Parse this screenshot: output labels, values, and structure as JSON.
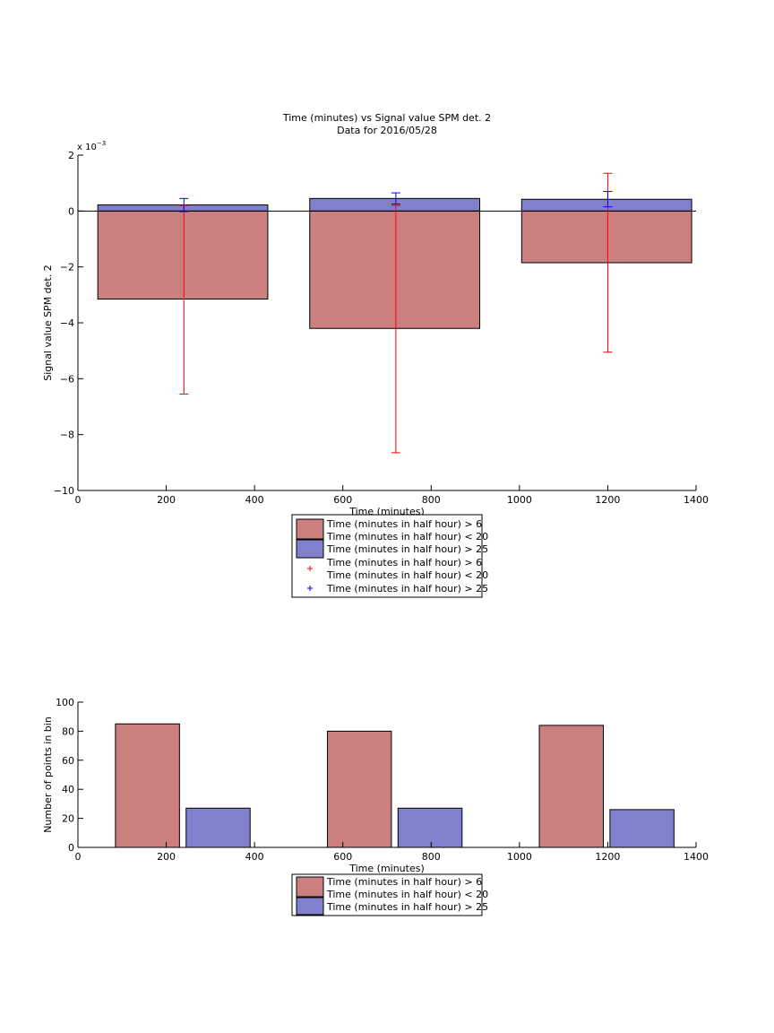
{
  "chart_data": [
    {
      "type": "bar",
      "title": "Time (minutes) vs Signal value SPM det. 2",
      "subtitle": "Data for 2016/05/28",
      "xlabel": "Time (minutes)",
      "ylabel": "Signal value SPM det. 2",
      "y_exponent_label": "x 10",
      "y_exponent_power": "−3",
      "xlim": [
        0,
        1400
      ],
      "ylim": [
        -10,
        2
      ],
      "xticks": [
        "0",
        "200",
        "400",
        "600",
        "800",
        "1000",
        "1200",
        "1400"
      ],
      "yticks": [
        "2",
        "0",
        "−2",
        "−4",
        "−6",
        "−8",
        "−10"
      ],
      "grid": false,
      "legend_position": "below",
      "colors": {
        "red_series": "#cc7f7f",
        "blue_series": "#8080cc",
        "red_errorbar": "#ff0000",
        "blue_errorbar": "#0000ff"
      },
      "bar_groups": [
        {
          "x_start": 45,
          "x_end": 430,
          "center": 240
        },
        {
          "x_start": 525,
          "x_end": 910,
          "center": 720
        },
        {
          "x_start": 1005,
          "x_end": 1390,
          "center": 1200
        }
      ],
      "series": [
        {
          "name": "Time (minutes in half hour) > 6\nTime (minutes in half hour) < 20",
          "legend_lines": [
            "Time (minutes in half hour) > 6",
            "Time (minutes in half hour) < 20"
          ],
          "values": [
            -3.15,
            -4.2,
            -1.85
          ],
          "errorbars": [
            [
              -6.55,
              0.2
            ],
            [
              -8.65,
              0.2
            ],
            [
              -5.05,
              1.35
            ]
          ]
        },
        {
          "name": "Time (minutes in half hour) > 25",
          "legend_lines": [
            "Time (minutes in half hour) > 25"
          ],
          "values": [
            0.22,
            0.45,
            0.42
          ],
          "errorbars": [
            [
              -0.02,
              0.45
            ],
            [
              0.25,
              0.65
            ],
            [
              0.15,
              0.7
            ]
          ]
        }
      ],
      "legend": {
        "bar_entries": [
          [
            "Time (minutes in half hour) > 6",
            "Time (minutes in half hour) < 20"
          ],
          [
            "Time (minutes in half hour) > 25"
          ]
        ],
        "marker_entries": [
          [
            "Time (minutes in half hour) > 6",
            "Time (minutes in half hour) < 20"
          ],
          [
            "Time (minutes in half hour) > 25"
          ]
        ]
      }
    },
    {
      "type": "bar",
      "xlabel": "Time (minutes)",
      "ylabel": "Number of points in bin",
      "xlim": [
        0,
        1400
      ],
      "ylim": [
        0,
        100
      ],
      "xticks": [
        "0",
        "200",
        "400",
        "600",
        "800",
        "1000",
        "1200",
        "1400"
      ],
      "yticks": [
        "100",
        "80",
        "60",
        "40",
        "20",
        "0"
      ],
      "grid": false,
      "legend_position": "below",
      "bars": [
        {
          "series": 0,
          "x_start": 85,
          "x_end": 230,
          "value": 85
        },
        {
          "series": 1,
          "x_start": 245,
          "x_end": 390,
          "value": 27
        },
        {
          "series": 0,
          "x_start": 565,
          "x_end": 710,
          "value": 80
        },
        {
          "series": 1,
          "x_start": 725,
          "x_end": 870,
          "value": 27
        },
        {
          "series": 0,
          "x_start": 1045,
          "x_end": 1190,
          "value": 84
        },
        {
          "series": 1,
          "x_start": 1205,
          "x_end": 1350,
          "value": 26
        }
      ],
      "series": [
        {
          "name": "Time (minutes in half hour) > 6\nTime (minutes in half hour) < 20",
          "color": "#cc7f7f"
        },
        {
          "name": "Time (minutes in half hour) > 25",
          "color": "#8080cc"
        }
      ],
      "legend": {
        "bar_entries": [
          [
            "Time (minutes in half hour) > 6",
            "Time (minutes in half hour) < 20"
          ],
          [
            "Time (minutes in half hour) > 25"
          ]
        ]
      }
    }
  ]
}
